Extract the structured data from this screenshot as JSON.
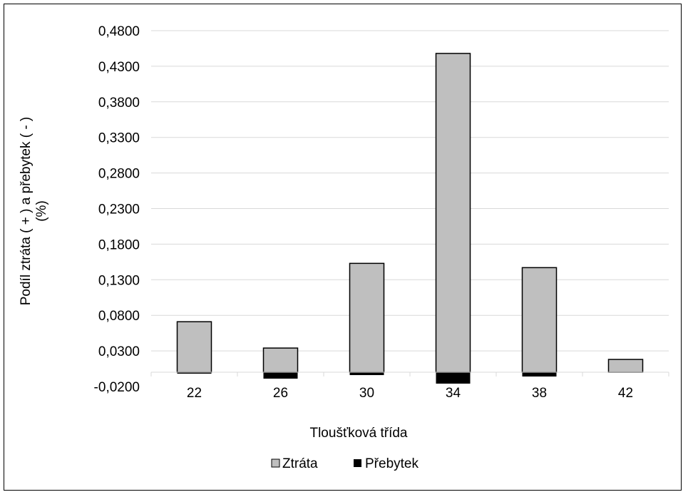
{
  "chart_data": {
    "type": "bar",
    "title": "",
    "xlabel": "Tloušťková třída",
    "ylabel_line1": "Podíl ztráta ( + ) a přebytek ( - )",
    "ylabel_line2": "(%)",
    "categories": [
      "22",
      "26",
      "30",
      "34",
      "38",
      "42"
    ],
    "series": [
      {
        "name": "Ztráta",
        "color": "#bfbfbf",
        "values": [
          0.071,
          0.034,
          0.153,
          0.448,
          0.147,
          0.018
        ]
      },
      {
        "name": "Přebytek",
        "color": "#000000",
        "values": [
          -0.002,
          -0.009,
          -0.004,
          -0.016,
          -0.006,
          0.0
        ]
      }
    ],
    "ylim": [
      -0.02,
      0.48
    ],
    "yticks": [
      "-0,0200",
      "0,0300",
      "0,0800",
      "0,1300",
      "0,1800",
      "0,2300",
      "0,2800",
      "0,3300",
      "0,3800",
      "0,4300",
      "0,4800"
    ],
    "ytick_values": [
      -0.02,
      0.03,
      0.08,
      0.13,
      0.18,
      0.23,
      0.28,
      0.33,
      0.38,
      0.43,
      0.48
    ],
    "grid": true,
    "legend_position": "bottom"
  }
}
